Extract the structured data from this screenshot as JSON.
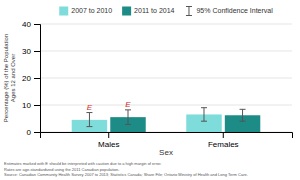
{
  "chart_data": {
    "type": "bar",
    "categories": [
      "Males",
      "Females"
    ],
    "series": [
      {
        "name": "2007 to 2010",
        "color": "#7EDCDA",
        "values": [
          4.5,
          6.5
        ],
        "ci_lower": [
          2.0,
          4.0
        ],
        "ci_upper": [
          7.2,
          9.0
        ],
        "annotations": [
          "E",
          null
        ]
      },
      {
        "name": "2011 to 2014",
        "color": "#1D8C86",
        "values": [
          5.5,
          6.2
        ],
        "ci_lower": [
          2.8,
          4.0
        ],
        "ci_upper": [
          8.2,
          8.4
        ],
        "annotations": [
          "E",
          null
        ]
      }
    ],
    "error_bar_label": "95% Confidence Interval",
    "ylabel": "Percentage (%) of the Population\nAges 12 and Over",
    "xlabel": "Sex",
    "footnote": [
      "Estimates marked with E should be interpreted with caution due to a high margin of error.",
      "Rates are age-standardized using the 2011 Canadian population.",
      "Source: Canadian Community Health Survey 2007 to 2013; Statistics Canada; Share File; Ontario Ministry of Health and Long Term Care."
    ],
    "ylim": [
      0,
      40
    ],
    "yticks": [
      0,
      10,
      20,
      30,
      40
    ],
    "grid": true,
    "legend": "top"
  }
}
